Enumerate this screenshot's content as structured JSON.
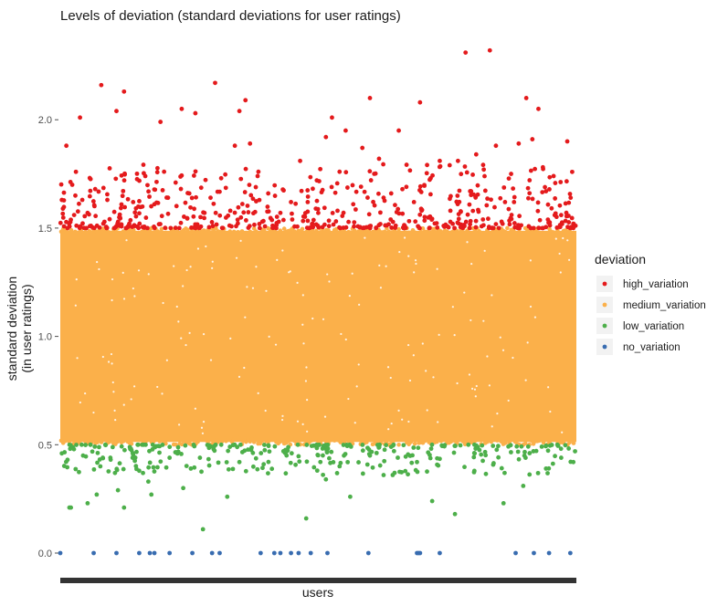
{
  "chart_data": {
    "type": "scatter",
    "title": "Levels of deviation (standard deviations for user ratings)",
    "xlabel": "users",
    "ylabel": [
      "standard deviation",
      "(in user ratings)"
    ],
    "ylim": [
      -0.05,
      2.42
    ],
    "yticks": [
      0.0,
      0.5,
      1.0,
      1.5,
      2.0
    ],
    "ytick_labels": [
      "0.0",
      "0.5",
      "1.0",
      "1.5",
      "2.0"
    ],
    "grid": false,
    "legend": {
      "title": "deviation",
      "position": "right"
    },
    "series": [
      {
        "name": "high_variation",
        "color": "#e41a1c",
        "range": [
          1.5,
          2.32
        ],
        "points": [
          [
            0.01,
            1.63
          ],
          [
            0.04,
            1.88
          ],
          [
            0.13,
            2.01
          ],
          [
            0.18,
            1.57
          ],
          [
            0.23,
            1.68
          ],
          [
            0.27,
            2.16
          ],
          [
            0.31,
            1.63
          ],
          [
            0.37,
            2.04
          ],
          [
            0.42,
            2.13
          ],
          [
            0.48,
            1.62
          ],
          [
            0.56,
            1.74
          ],
          [
            0.62,
            1.61
          ],
          [
            0.66,
            1.99
          ],
          [
            0.71,
            1.64
          ],
          [
            0.76,
            1.71
          ],
          [
            0.8,
            2.05
          ],
          [
            0.85,
            1.66
          ],
          [
            0.89,
            2.03
          ],
          [
            0.95,
            1.57
          ],
          [
            0.99,
            1.64
          ],
          [
            1.02,
            2.17
          ],
          [
            1.06,
            1.73
          ],
          [
            1.12,
            1.58
          ],
          [
            1.15,
            1.88
          ],
          [
            1.18,
            2.04
          ],
          [
            1.22,
            2.09
          ],
          [
            1.25,
            1.89
          ],
          [
            1.3,
            1.74
          ],
          [
            1.37,
            1.66
          ],
          [
            1.45,
            1.57
          ],
          [
            1.52,
            1.62
          ],
          [
            1.58,
            1.81
          ],
          [
            1.63,
            1.62
          ],
          [
            1.69,
            1.72
          ],
          [
            1.75,
            1.92
          ],
          [
            1.79,
            2.01
          ],
          [
            1.84,
            1.76
          ],
          [
            1.88,
            1.95
          ],
          [
            1.93,
            1.61
          ],
          [
            1.99,
            1.87
          ],
          [
            2.04,
            2.1
          ],
          [
            2.1,
            1.82
          ],
          [
            2.13,
            1.64
          ],
          [
            2.18,
            1.66
          ],
          [
            2.23,
            1.95
          ],
          [
            2.28,
            1.69
          ],
          [
            2.33,
            1.62
          ],
          [
            2.37,
            2.08
          ],
          [
            2.44,
            1.73
          ],
          [
            2.5,
            1.81
          ],
          [
            2.57,
            1.58
          ],
          [
            2.62,
            1.81
          ],
          [
            2.67,
            2.31
          ],
          [
            2.7,
            1.67
          ],
          [
            2.74,
            1.84
          ],
          [
            2.79,
            1.77
          ],
          [
            2.83,
            2.32
          ],
          [
            2.87,
            1.88
          ],
          [
            2.93,
            1.62
          ],
          [
            2.97,
            1.75
          ],
          [
            3.02,
            1.89
          ],
          [
            3.07,
            2.1
          ],
          [
            3.11,
            1.91
          ],
          [
            3.15,
            2.05
          ],
          [
            3.2,
            1.67
          ],
          [
            3.25,
            1.74
          ],
          [
            3.3,
            1.56
          ],
          [
            3.34,
            1.9
          ],
          [
            3.38,
            1.52
          ]
        ]
      },
      {
        "name": "medium_variation",
        "color": "#fbb04a",
        "range": [
          0.5,
          1.5
        ]
      },
      {
        "name": "low_variation",
        "color": "#4daf4a",
        "range": [
          0.1,
          0.5
        ],
        "points": [
          [
            0.01,
            0.46
          ],
          [
            0.06,
            0.21
          ],
          [
            0.07,
            0.21
          ],
          [
            0.15,
            0.45
          ],
          [
            0.18,
            0.23
          ],
          [
            0.24,
            0.27
          ],
          [
            0.28,
            0.44
          ],
          [
            0.33,
            0.44
          ],
          [
            0.38,
            0.29
          ],
          [
            0.42,
            0.21
          ],
          [
            0.52,
            0.38
          ],
          [
            0.58,
            0.33
          ],
          [
            0.6,
            0.27
          ],
          [
            0.72,
            0.44
          ],
          [
            0.81,
            0.3
          ],
          [
            0.86,
            0.39
          ],
          [
            0.92,
            0.44
          ],
          [
            0.94,
            0.11
          ],
          [
            1.1,
            0.26
          ],
          [
            1.18,
            0.42
          ],
          [
            1.34,
            0.41
          ],
          [
            1.47,
            0.47
          ],
          [
            1.62,
            0.16
          ],
          [
            1.75,
            0.34
          ],
          [
            1.91,
            0.26
          ],
          [
            2.04,
            0.45
          ],
          [
            2.13,
            0.36
          ],
          [
            2.35,
            0.42
          ],
          [
            2.45,
            0.24
          ],
          [
            2.6,
            0.18
          ],
          [
            2.73,
            0.46
          ],
          [
            2.92,
            0.23
          ],
          [
            3.05,
            0.31
          ],
          [
            3.2,
            0.39
          ],
          [
            3.3,
            0.44
          ],
          [
            3.38,
            0.42
          ]
        ]
      },
      {
        "name": "no_variation",
        "color": "#386cb0",
        "range": [
          0.0,
          0.0
        ],
        "x_positions": [
          0.0,
          0.22,
          0.37,
          0.52,
          0.59,
          0.62,
          0.72,
          0.87,
          1.0,
          1.05,
          1.32,
          1.41,
          1.45,
          1.52,
          1.57,
          1.65,
          1.76,
          2.03,
          2.35,
          2.36,
          2.37,
          2.5,
          3.0,
          3.12,
          3.22,
          3.36
        ]
      }
    ]
  }
}
